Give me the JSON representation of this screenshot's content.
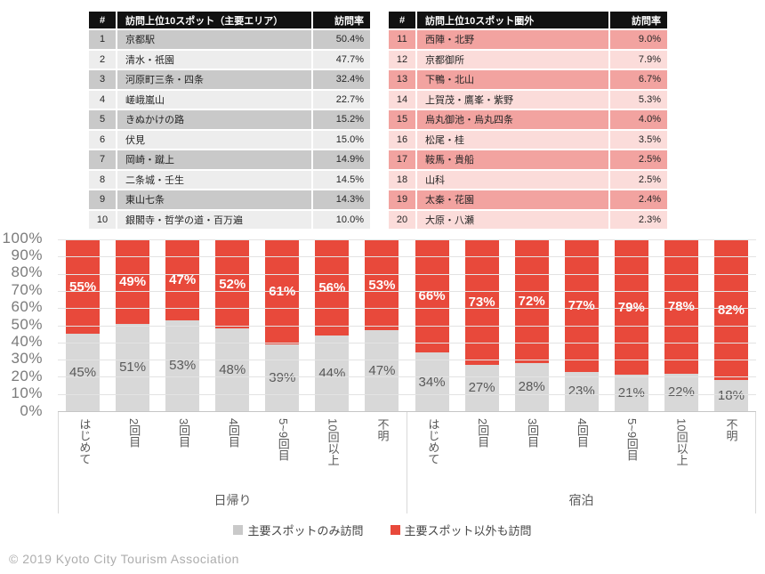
{
  "tables": {
    "left": {
      "headers": [
        "#",
        "訪問上位10スポット（主要エリア）",
        "訪問率"
      ],
      "rows": [
        [
          "1",
          "京都駅",
          "50.4%"
        ],
        [
          "2",
          "清水・祇園",
          "47.7%"
        ],
        [
          "3",
          "河原町三条・四条",
          "32.4%"
        ],
        [
          "4",
          "嵯峨嵐山",
          "22.7%"
        ],
        [
          "5",
          "きぬかけの路",
          "15.2%"
        ],
        [
          "6",
          "伏見",
          "15.0%"
        ],
        [
          "7",
          "岡崎・蹴上",
          "14.9%"
        ],
        [
          "8",
          "二条城・壬生",
          "14.5%"
        ],
        [
          "9",
          "東山七条",
          "14.3%"
        ],
        [
          "10",
          "銀閣寺・哲学の道・百万遍",
          "10.0%"
        ]
      ]
    },
    "right": {
      "headers": [
        "#",
        "訪問上位10スポット圏外",
        "訪問率"
      ],
      "rows": [
        [
          "11",
          "西陣・北野",
          "9.0%"
        ],
        [
          "12",
          "京都御所",
          "7.9%"
        ],
        [
          "13",
          "下鴨・北山",
          "6.7%"
        ],
        [
          "14",
          "上賀茂・鷹峯・紫野",
          "5.3%"
        ],
        [
          "15",
          "烏丸御池・烏丸四条",
          "4.0%"
        ],
        [
          "16",
          "松尾・桂",
          "3.5%"
        ],
        [
          "17",
          "鞍馬・貴船",
          "2.5%"
        ],
        [
          "18",
          "山科",
          "2.5%"
        ],
        [
          "19",
          "太秦・花園",
          "2.4%"
        ],
        [
          "20",
          "大原・八瀬",
          "2.3%"
        ]
      ]
    }
  },
  "chart_data": {
    "type": "bar",
    "stacked": true,
    "ylim": [
      0,
      100
    ],
    "ytick_step": 10,
    "ytick_suffix": "%",
    "grid": true,
    "categories": [
      "はじめて",
      "2回目",
      "3回目",
      "4回目",
      "5~9回目",
      "10回以上",
      "不明"
    ],
    "groups": [
      {
        "label": "日帰り",
        "series": [
          {
            "name": "主要スポットのみ訪問",
            "color": "#D8D8D8",
            "values": [
              45,
              51,
              53,
              48,
              39,
              44,
              47
            ]
          },
          {
            "name": "主要スポット以外も訪問",
            "color": "#E8493B",
            "values": [
              55,
              49,
              47,
              52,
              61,
              56,
              53
            ]
          }
        ]
      },
      {
        "label": "宿泊",
        "series": [
          {
            "name": "主要スポットのみ訪問",
            "color": "#D8D8D8",
            "values": [
              34,
              27,
              28,
              23,
              21,
              22,
              18
            ]
          },
          {
            "name": "主要スポット以外も訪問",
            "color": "#E8493B",
            "values": [
              66,
              73,
              72,
              77,
              79,
              78,
              82
            ]
          }
        ]
      }
    ],
    "legend_position": "bottom"
  },
  "legend": [
    {
      "label": "主要スポットのみ訪問",
      "color": "#C9C9C9"
    },
    {
      "label": "主要スポット以外も訪問",
      "color": "#E8493B"
    }
  ],
  "footer": {
    "text": "© 2019 Kyoto City Tourism Association"
  }
}
